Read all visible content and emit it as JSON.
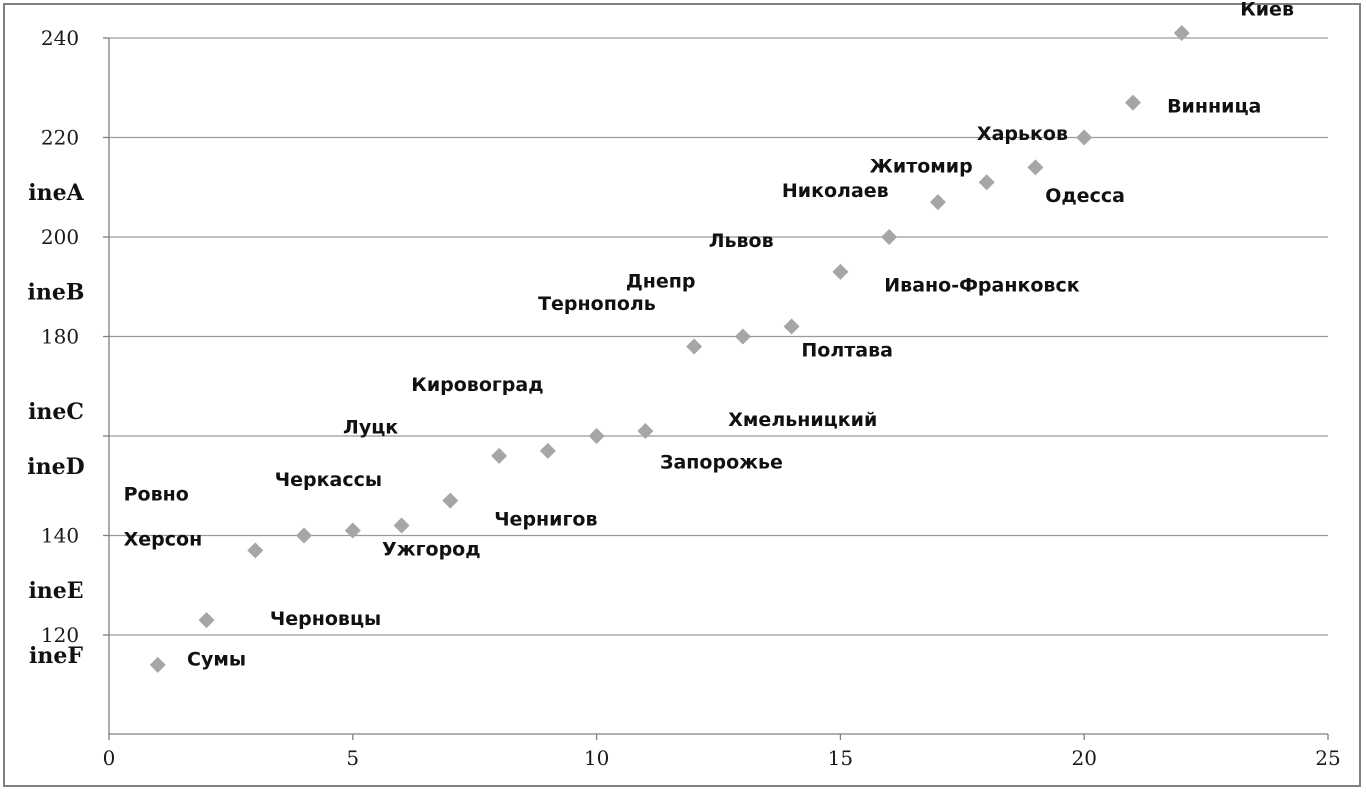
{
  "chart_data": {
    "type": "scatter",
    "title": "",
    "xlabel": "",
    "ylabel": "",
    "xlim": [
      0,
      25
    ],
    "ylim": [
      113,
      240
    ],
    "x_ticks": [
      "0",
      "5",
      "10",
      "15",
      "20",
      "25"
    ],
    "y_ticks": [
      {
        "value": 120,
        "label": "120"
      },
      {
        "value": 140,
        "label": "140"
      },
      {
        "value": 180,
        "label": "180"
      },
      {
        "value": 200,
        "label": "200"
      },
      {
        "value": 220,
        "label": "220"
      },
      {
        "value": 240,
        "label": "240"
      }
    ],
    "gridlines_y": [
      120,
      140,
      160,
      180,
      200,
      220,
      240
    ],
    "band_labels": [
      {
        "label": "ineA",
        "value": 209
      },
      {
        "label": "ineB",
        "value": 189
      },
      {
        "label": "ineC",
        "value": 165
      },
      {
        "label": "ineD",
        "value": 154
      },
      {
        "label": "ineE",
        "value": 129
      },
      {
        "label": "ineF",
        "value": 116
      }
    ],
    "marker_color": "#a6a6a6",
    "marker_shape": "diamond",
    "points": [
      {
        "x": 1,
        "y": 114,
        "label": "Сумы",
        "label_x": 1.6,
        "label_y": 113.9
      },
      {
        "x": 2,
        "y": 123,
        "label": "Черновцы",
        "label_x": 3.3,
        "label_y": 122.0
      },
      {
        "x": 3,
        "y": 137,
        "label": "Херсон",
        "label_x": 0.3,
        "label_y": 138.0
      },
      {
        "x": 4,
        "y": 140,
        "label": "Ровно",
        "label_x": 0.3,
        "label_y": 147.0
      },
      {
        "x": 5,
        "y": 141,
        "label": "Черкассы",
        "label_x": 3.4,
        "label_y": 150.0
      },
      {
        "x": 6,
        "y": 142,
        "label": "Ужгород",
        "label_x": 5.6,
        "label_y": 136.0
      },
      {
        "x": 7,
        "y": 147,
        "label": "Чернигов",
        "label_x": 7.9,
        "label_y": 142.0
      },
      {
        "x": 8,
        "y": 156,
        "label": "Луцк",
        "label_x": 4.8,
        "label_y": 160.5
      },
      {
        "x": 9,
        "y": 157,
        "label": "Кировоград",
        "label_x": 6.2,
        "label_y": 169.0
      },
      {
        "x": 10,
        "y": 160,
        "label": "Запорожье",
        "label_x": 11.3,
        "label_y": 153.5
      },
      {
        "x": 11,
        "y": 161,
        "label": "Хмельницкий",
        "label_x": 12.7,
        "label_y": 162.0
      },
      {
        "x": 12,
        "y": 178,
        "label": "Тернополь",
        "label_x": 8.8,
        "label_y": 185.3
      },
      {
        "x": 13,
        "y": 180,
        "label": "Полтава",
        "label_x": 14.2,
        "label_y": 176.0
      },
      {
        "x": 14,
        "y": 182,
        "label": "Днепр",
        "label_x": 10.6,
        "label_y": 189.8
      },
      {
        "x": 15,
        "y": 193,
        "label": "Ивано-Франковск",
        "label_x": 15.9,
        "label_y": 189.0
      },
      {
        "x": 16,
        "y": 200,
        "label": "Львов",
        "label_x": 12.3,
        "label_y": 198.0
      },
      {
        "x": 17,
        "y": 207,
        "label": "Николаев",
        "label_x": 13.8,
        "label_y": 208.0
      },
      {
        "x": 18,
        "y": 211,
        "label": "Житомир",
        "label_x": 15.6,
        "label_y": 213.0
      },
      {
        "x": 19,
        "y": 214,
        "label": "Одесса",
        "label_x": 19.2,
        "label_y": 207.0
      },
      {
        "x": 20,
        "y": 220,
        "label": "Харьков",
        "label_x": 17.8,
        "label_y": 219.5
      },
      {
        "x": 21,
        "y": 227,
        "label": "Винница",
        "label_x": 21.7,
        "label_y": 225.0
      },
      {
        "x": 22,
        "y": 241,
        "label": "Киев",
        "label_x": 23.2,
        "label_y": 244.5
      }
    ]
  }
}
